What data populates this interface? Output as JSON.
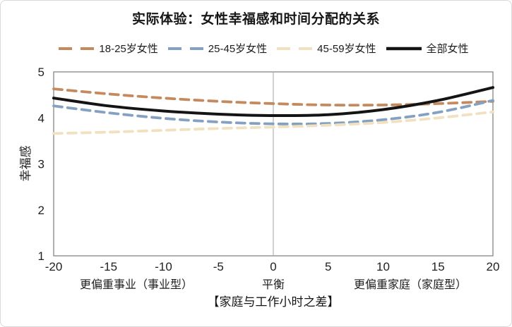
{
  "figure": {
    "title": "实际体验：女性幸福感和时间分配的关系"
  },
  "legend": {
    "items": [
      {
        "label": "18-25岁女性",
        "color": "#C5895E",
        "style": "dashed"
      },
      {
        "label": "25-45岁女性",
        "color": "#84A1C2",
        "style": "dashed"
      },
      {
        "label": "45-59岁女性",
        "color": "#F1E1C0",
        "style": "dashed"
      },
      {
        "label": "全部女性",
        "color": "#141414",
        "style": "solid"
      }
    ]
  },
  "chart_data": {
    "type": "line",
    "title": "实际体验：女性幸福感和时间分配的关系",
    "xlabel": "【家庭与工作小时之差】",
    "ylabel": "幸福感",
    "xlim": [
      -20,
      20
    ],
    "ylim": [
      1,
      5
    ],
    "xticks": [
      -20,
      -15,
      -10,
      -5,
      0,
      5,
      10,
      15,
      20
    ],
    "yticks": [
      1,
      2,
      3,
      4,
      5
    ],
    "grid": false,
    "legend_position": "top",
    "x": [
      -20,
      -15,
      -10,
      -5,
      0,
      5,
      10,
      15,
      20
    ],
    "series": [
      {
        "name": "18-25岁女性",
        "color": "#C5895E",
        "style": "dashed",
        "values": [
          4.63,
          4.52,
          4.43,
          4.36,
          4.31,
          4.28,
          4.28,
          4.31,
          4.36
        ]
      },
      {
        "name": "25-45岁女性",
        "color": "#84A1C2",
        "style": "dashed",
        "values": [
          4.26,
          4.11,
          3.99,
          3.91,
          3.87,
          3.88,
          3.96,
          4.12,
          4.38
        ]
      },
      {
        "name": "45-59岁女性",
        "color": "#F1E1C0",
        "style": "dashed",
        "values": [
          3.66,
          3.69,
          3.73,
          3.77,
          3.8,
          3.84,
          3.9,
          4.0,
          4.13
        ]
      },
      {
        "name": "全部女性",
        "color": "#141414",
        "style": "solid",
        "values": [
          4.43,
          4.26,
          4.15,
          4.08,
          4.05,
          4.07,
          4.18,
          4.38,
          4.66
        ]
      }
    ],
    "annotations": {
      "reference_line_x": 0,
      "x_region_labels": [
        {
          "text": "更偏重事业（事业型）",
          "x": -12.5
        },
        {
          "text": "平衡",
          "x": 0
        },
        {
          "text": "更偏重家庭（家庭型）",
          "x": 12.5
        }
      ]
    }
  }
}
